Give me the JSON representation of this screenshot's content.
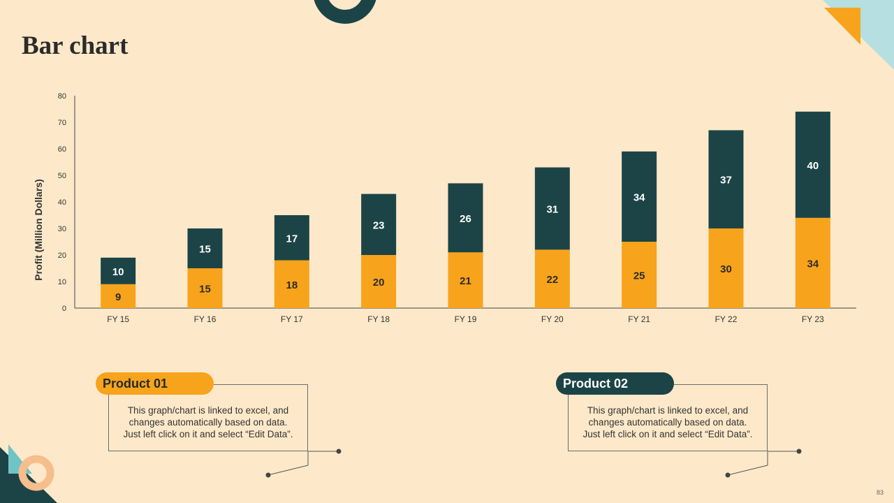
{
  "slide": {
    "title": "Bar chart",
    "page_number": "83"
  },
  "chart_data": {
    "type": "bar",
    "stacked": true,
    "categories": [
      "FY 15",
      "FY 16",
      "FY 17",
      "FY 18",
      "FY 19",
      "FY 20",
      "FY 21",
      "FY 22",
      "FY 23"
    ],
    "series": [
      {
        "values": [
          9,
          15,
          18,
          20,
          21,
          22,
          25,
          30,
          34
        ],
        "color": "#f8a31c"
      },
      {
        "values": [
          10,
          15,
          17,
          23,
          26,
          31,
          34,
          37,
          40
        ],
        "color": "#1c4446"
      }
    ],
    "ylabel": "Profit  (Million Dollars)",
    "xlabel": "",
    "ylim": [
      0,
      80
    ],
    "yticks": [
      0,
      10,
      20,
      30,
      40,
      50,
      60,
      70,
      80
    ],
    "grid": false,
    "legend": "none"
  },
  "callouts": [
    {
      "label": "Product 01",
      "text_lines": [
        "This graph/chart is linked to excel, and",
        "changes automatically based on data.",
        "Just left click on it and select “Edit Data”."
      ]
    },
    {
      "label": "Product 02",
      "text_lines": [
        "This graph/chart is linked to excel, and",
        "changes automatically based on data.",
        "Just left click on it and select “Edit Data”."
      ]
    }
  ],
  "colors": {
    "background": "#fde9c9",
    "accent_orange": "#f8a31c",
    "accent_teal": "#1c4446",
    "accent_light_blue": "#b5dfe0",
    "accent_peach": "#f5be8c"
  }
}
